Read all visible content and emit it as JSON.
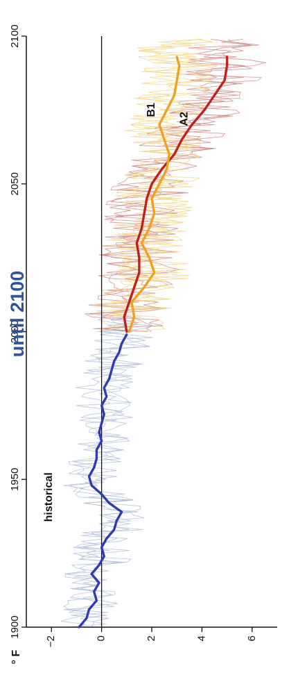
{
  "title": "until 2100",
  "unit_label": "° F",
  "colors": {
    "historical": "#2f3bb0",
    "A2": "#c0201a",
    "B1": "#f0a020",
    "historical_spread": "#a9b8d6",
    "A2_spread": "#cf7e7e",
    "B1_spread": "#f3d27a",
    "title": "#2f5496"
  },
  "chart_data": {
    "type": "line",
    "orientation": "rotated-90-clockwise",
    "title": "until 2100",
    "xlabel": "",
    "ylabel": "° F",
    "xlim": [
      1900,
      2100
    ],
    "ylim": [
      -3,
      7
    ],
    "xticks": [
      1900,
      1950,
      2000,
      2050,
      2100
    ],
    "yticks": [
      -2,
      0,
      2,
      4,
      6
    ],
    "reference_line_y": 0,
    "grid": false,
    "series": [
      {
        "name": "historical",
        "x": [
          1900,
          1903,
          1906,
          1909,
          1912,
          1915,
          1918,
          1921,
          1924,
          1927,
          1930,
          1933,
          1936,
          1939,
          1942,
          1945,
          1948,
          1951,
          1954,
          1957,
          1960,
          1963,
          1966,
          1969,
          1972,
          1975,
          1978,
          1981,
          1984,
          1987,
          1990,
          1993,
          1996,
          1999
        ],
        "y": [
          -0.9,
          -0.6,
          -0.5,
          -0.2,
          -0.3,
          -0.1,
          -0.4,
          -0.1,
          0.1,
          0.0,
          0.2,
          0.5,
          0.6,
          0.8,
          0.3,
          0.0,
          -0.4,
          -0.5,
          -0.3,
          -0.2,
          -0.2,
          0.0,
          -0.1,
          0.0,
          0.1,
          0.0,
          0.2,
          0.1,
          0.3,
          0.4,
          0.5,
          0.7,
          0.8,
          1.0
        ]
      },
      {
        "name": "A2",
        "x": [
          2000,
          2005,
          2010,
          2015,
          2020,
          2025,
          2030,
          2035,
          2040,
          2045,
          2050,
          2055,
          2060,
          2065,
          2070,
          2075,
          2080,
          2085,
          2090,
          2093
        ],
        "y": [
          1.0,
          0.9,
          1.1,
          1.3,
          1.5,
          1.5,
          1.4,
          1.6,
          1.7,
          1.8,
          2.0,
          2.4,
          2.9,
          3.2,
          3.6,
          4.1,
          4.5,
          4.9,
          5.0,
          5.0
        ]
      },
      {
        "name": "B1",
        "x": [
          2000,
          2005,
          2010,
          2015,
          2020,
          2025,
          2030,
          2035,
          2040,
          2045,
          2050,
          2055,
          2060,
          2065,
          2070,
          2075,
          2080,
          2085,
          2090,
          2093
        ],
        "y": [
          1.1,
          1.3,
          1.2,
          1.7,
          2.1,
          1.9,
          1.6,
          1.9,
          2.1,
          2.0,
          2.3,
          2.6,
          2.7,
          2.5,
          2.3,
          2.6,
          2.9,
          3.0,
          3.1,
          3.0
        ]
      }
    ],
    "annotations": [
      {
        "text": "historical",
        "x": 1944,
        "y": -2.1
      },
      {
        "text": "A2",
        "x": 2072,
        "y": 3.3
      },
      {
        "text": "B1",
        "x": 2075,
        "y": 2.0
      }
    ],
    "tick_labels": {
      "x": [
        "1900",
        "1950",
        "2000",
        "2050",
        "2100"
      ],
      "y": [
        "−2",
        "0",
        "2",
        "4",
        "6"
      ]
    }
  }
}
